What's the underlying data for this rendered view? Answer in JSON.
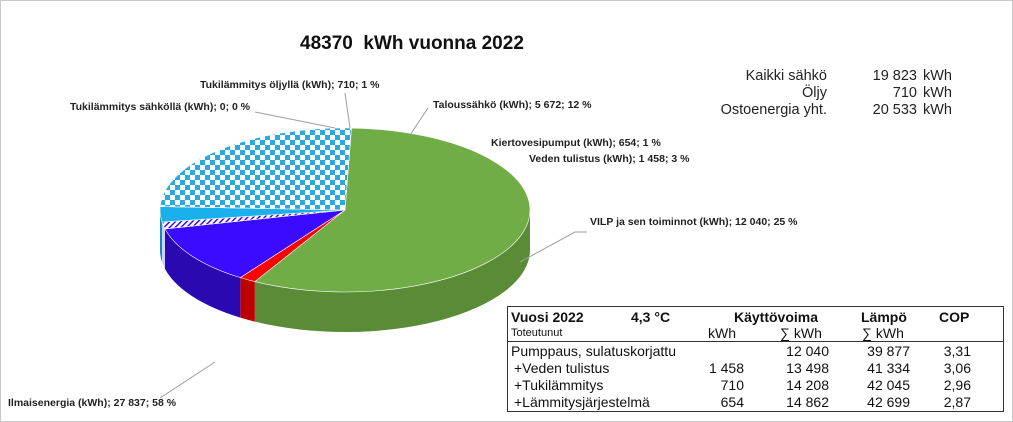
{
  "title": "48370  kWh vuonna 2022",
  "chart_data": {
    "type": "pie",
    "title": "48370  kWh vuonna 2022",
    "slices": [
      {
        "label": "Ilmaisenergia (kWh); 27 837; 58 %",
        "value": 27837,
        "color": "#70ad47"
      },
      {
        "label": "Tukilämmitys sähköllä (kWh); 0; 0 %",
        "value": 0,
        "color": "#7f7f7f"
      },
      {
        "label": "Tukilämmitys öljyllä (kWh); 710; 1 %",
        "value": 710,
        "color": "#ff0000"
      },
      {
        "label": "Taloussähkö (kWh); 5 672; 12 %",
        "value": 5672,
        "color": "#3a0bff"
      },
      {
        "label": "Kiertovesipumput (kWh); 654; 1 %",
        "value": 654,
        "color": "#ffffff"
      },
      {
        "label": "Veden tulistus (kWh); 1 458; 3 %",
        "value": 1458,
        "color": "#1ab0ec"
      },
      {
        "label": "VILP ja sen toiminnot (kWh); 12 040; 25 %",
        "value": 12040,
        "color": "#29a9e0"
      }
    ]
  },
  "summary": [
    {
      "label": "Kaikki sähkö",
      "value": "19 823",
      "unit": "kWh"
    },
    {
      "label": "Öljy",
      "value": "710",
      "unit": "kWh"
    },
    {
      "label": "Ostoenergia yht.",
      "value": "20 533",
      "unit": "kWh"
    }
  ],
  "table": {
    "year": "Vuosi 2022",
    "temp": "4,3 °C",
    "col_kayttovoima": "Käyttövoima",
    "col_lampo": "Lämpö",
    "col_cop": "COP",
    "subtitle": "Toteutunut",
    "sub_kwh": "kWh",
    "sub_sum1": "∑ kWh",
    "sub_sum2": "∑ kWh",
    "rows": [
      {
        "label": "Pumppaus, sulatuskorjattu",
        "kwh": "",
        "sum": "12 040",
        "heat": "39 877",
        "cop": "3,31"
      },
      {
        "label": "+Veden tulistus",
        "kwh": "1 458",
        "sum": "13 498",
        "heat": "41 334",
        "cop": "3,06"
      },
      {
        "label": "+Tukilämmitys",
        "kwh": "710",
        "sum": "14 208",
        "heat": "42 045",
        "cop": "2,96"
      },
      {
        "label": "+Lämmitysjärjestelmä",
        "kwh": "654",
        "sum": "14 862",
        "heat": "42 699",
        "cop": "2,87"
      }
    ]
  }
}
